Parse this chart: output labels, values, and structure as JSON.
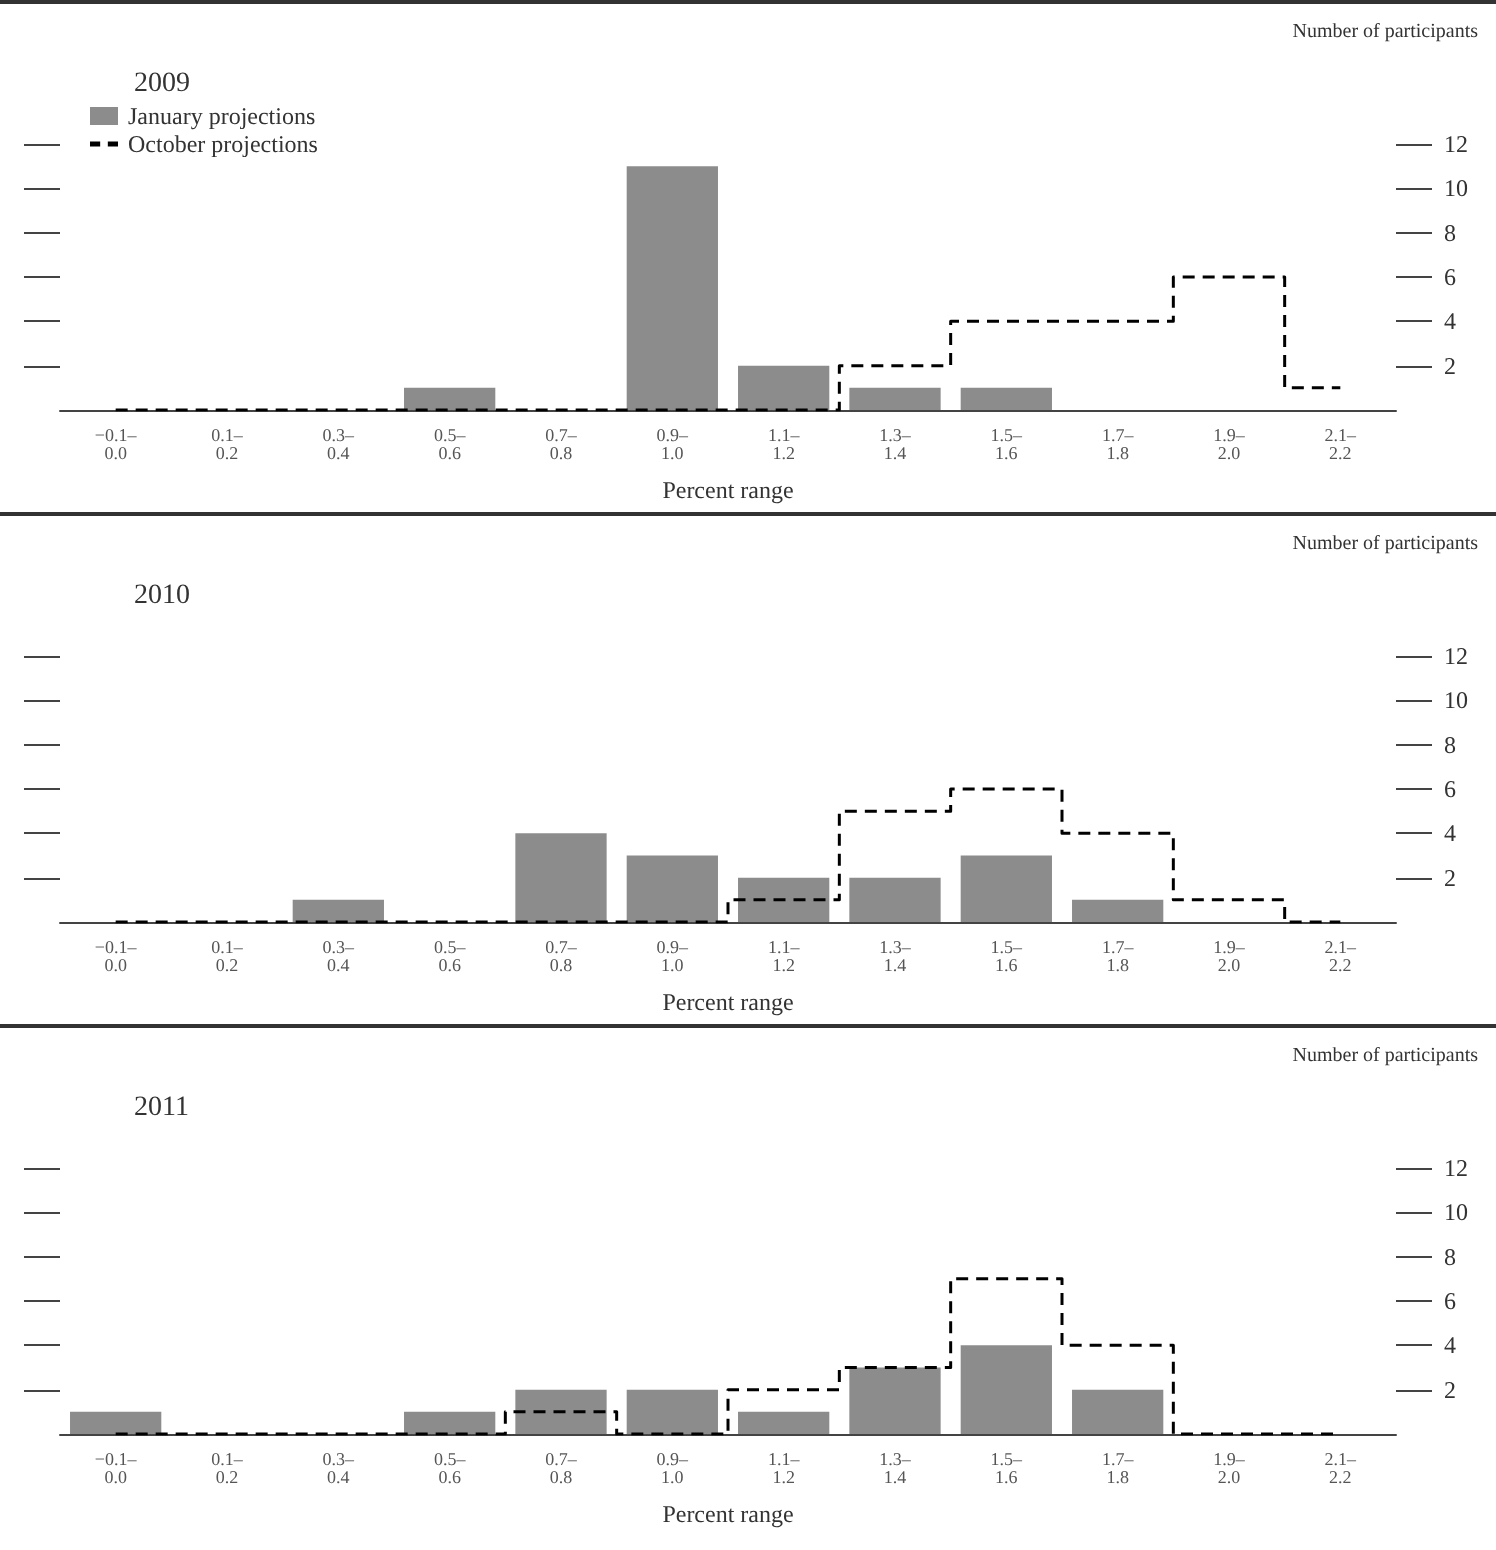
{
  "chart_data": [
    {
      "type": "bar",
      "title": "2009",
      "xlabel": "Percent range",
      "ylabel": "Number of participants",
      "categories": [
        "−0.1–\n0.0",
        "0.1–\n0.2",
        "0.3–\n0.4",
        "0.5–\n0.6",
        "0.7–\n0.8",
        "0.9–\n1.0",
        "1.1–\n1.2",
        "1.3–\n1.4",
        "1.5–\n1.6",
        "1.7–\n1.8",
        "1.9–\n2.0",
        "2.1–\n2.2"
      ],
      "series": [
        {
          "name": "January projections",
          "color": "#8c8c8c",
          "values": [
            0,
            0,
            0,
            1,
            0,
            11,
            2,
            1,
            1,
            0,
            0,
            0
          ]
        },
        {
          "name": "October projections",
          "type": "step",
          "color": "#000000",
          "values": [
            0,
            0,
            0,
            0,
            0,
            0,
            0,
            2,
            4,
            4,
            6,
            1
          ]
        }
      ],
      "ylim": [
        0,
        12
      ],
      "yticks": [
        2,
        4,
        6,
        8,
        10,
        12
      ],
      "grid": false,
      "legend": "top left",
      "line_style": "dashed",
      "marker": "none"
    },
    {
      "type": "bar",
      "title": "2010",
      "xlabel": "Percent range",
      "ylabel": "Number of participants",
      "categories": [
        "−0.1–\n0.0",
        "0.1–\n0.2",
        "0.3–\n0.4",
        "0.5–\n0.6",
        "0.7–\n0.8",
        "0.9–\n1.0",
        "1.1–\n1.2",
        "1.3–\n1.4",
        "1.5–\n1.6",
        "1.7–\n1.8",
        "1.9–\n2.0",
        "2.1–\n2.2"
      ],
      "series": [
        {
          "color": "#8c8c8c",
          "values": [
            0,
            0,
            1,
            0,
            4,
            3,
            2,
            2,
            3,
            1,
            0,
            0
          ]
        },
        {
          "type": "step",
          "color": "#000000",
          "values": [
            0,
            0,
            0,
            0,
            0,
            0,
            1,
            5,
            6,
            4,
            1,
            0
          ]
        }
      ],
      "ylim": [
        0,
        12
      ],
      "yticks": [
        2,
        4,
        6,
        8,
        10,
        12
      ],
      "grid": false,
      "line_style": "dashed",
      "marker": "none"
    },
    {
      "type": "bar",
      "title": "2011",
      "xlabel": "Percent range",
      "ylabel": "Number of participants",
      "categories": [
        "−0.1–\n0.0",
        "0.1–\n0.2",
        "0.3–\n0.4",
        "0.5–\n0.6",
        "0.7–\n0.8",
        "0.9–\n1.0",
        "1.1–\n1.2",
        "1.3–\n1.4",
        "1.5–\n1.6",
        "1.7–\n1.8",
        "1.9–\n2.0",
        "2.1–\n2.2"
      ],
      "series": [
        {
          "color": "#8c8c8c",
          "values": [
            1,
            0,
            0,
            1,
            2,
            2,
            1,
            3,
            4,
            2,
            0,
            0
          ]
        },
        {
          "type": "step",
          "color": "#000000",
          "values": [
            0,
            0,
            0,
            0,
            1,
            0,
            2,
            3,
            7,
            4,
            0,
            0
          ]
        }
      ],
      "ylim": [
        0,
        12
      ],
      "yticks": [
        2,
        4,
        6,
        8,
        10,
        12
      ],
      "grid": false,
      "line_style": "dashed",
      "marker": "none"
    }
  ]
}
